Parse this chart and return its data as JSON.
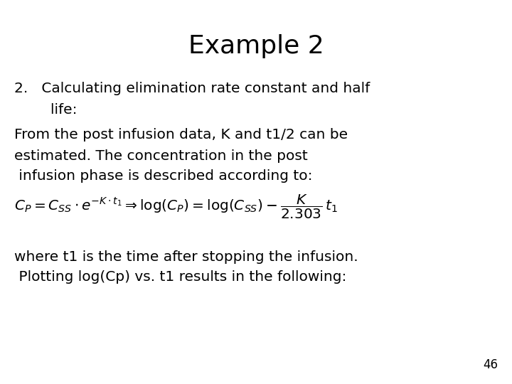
{
  "title": "Example 2",
  "title_fontsize": 26,
  "title_fontweight": "normal",
  "background_color": "#ffffff",
  "text_color": "#000000",
  "body_fontsize": 14.5,
  "line1": "2.   Calculating elimination rate constant and half",
  "line2": "        life:",
  "line3": "From the post infusion data, K and t1/2 can be",
  "line4": "estimated. The concentration in the post",
  "line5": " infusion phase is described according to:",
  "line6": "where t1 is the time after stopping the infusion.",
  "line7": " Plotting log(Cp) vs. t1 results in the following:",
  "page_number": "46",
  "formula": "$C_P = C_{SS} \\cdot e^{-K \\cdot t_1} \\Rightarrow \\log(C_P) = \\log(C_{SS}) - \\dfrac{K}{2.303}\\, t_1$",
  "formula_fontsize": 14.5,
  "page_fontsize": 12
}
